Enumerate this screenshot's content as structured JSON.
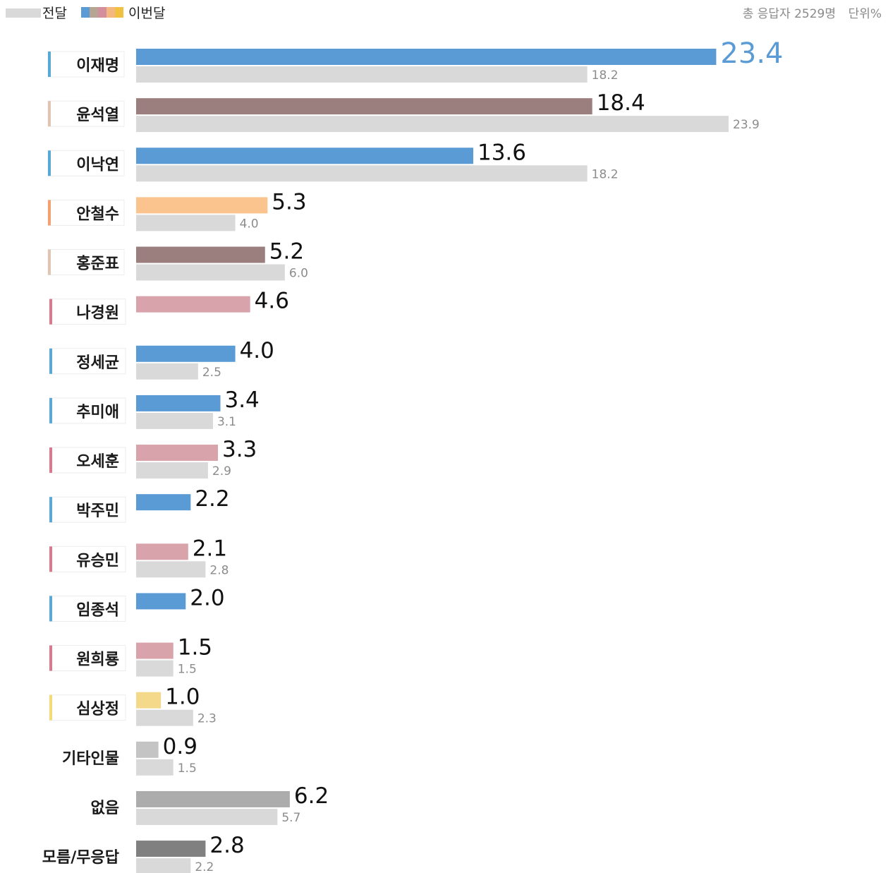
{
  "chart_data": {
    "type": "bar",
    "orientation": "horizontal",
    "legend": {
      "position": "top-left",
      "items": [
        {
          "name": "전달",
          "swatch_colors": [
            "#d9d9d9"
          ]
        },
        {
          "name": "이번달",
          "swatch_colors": [
            "#5b9bd5",
            "#b5a592",
            "#d48f9c",
            "#f2b880",
            "#f0c040"
          ]
        }
      ]
    },
    "meta_text": {
      "respondents": "총 응답자 2529명",
      "unit": "단위%"
    },
    "xlim": [
      0,
      23.9
    ],
    "grid": false,
    "series": [
      {
        "name": "이번달",
        "values": [
          23.4,
          18.4,
          13.6,
          5.3,
          5.2,
          4.6,
          4.0,
          3.4,
          3.3,
          2.2,
          2.1,
          2.0,
          1.5,
          1.0,
          0.9,
          6.2,
          2.8
        ]
      },
      {
        "name": "전달",
        "values": [
          18.2,
          23.9,
          18.2,
          4.0,
          6.0,
          null,
          2.5,
          3.1,
          2.9,
          null,
          2.8,
          null,
          1.5,
          2.3,
          1.5,
          5.7,
          2.2
        ]
      }
    ],
    "categories": [
      "이재명",
      "윤석열",
      "이낙연",
      "안철수",
      "홍준표",
      "나경원",
      "정세균",
      "추미애",
      "오세훈",
      "박주민",
      "유승민",
      "임종석",
      "원희룡",
      "심상정",
      "기타인물",
      "없음",
      "모름/무응답"
    ],
    "current_labels": [
      "23.4",
      "18.4",
      "13.6",
      "5.3",
      "5.2",
      "4.6",
      "4.0",
      "3.4",
      "3.3",
      "2.2",
      "2.1",
      "2.0",
      "1.5",
      "1.0",
      "0.9",
      "6.2",
      "2.8"
    ],
    "previous_labels": [
      "18.2",
      "23.9",
      "18.2",
      "4.0",
      "6.0",
      "",
      "2.5",
      "3.1",
      "2.9",
      "",
      "2.8",
      "",
      "1.5",
      "2.3",
      "1.5",
      "5.7",
      "2.2"
    ],
    "bar_colors": [
      "#5b9bd5",
      "#9b7e7e",
      "#5b9bd5",
      "#fbc48e",
      "#9b7e7e",
      "#d8a3ab",
      "#5b9bd5",
      "#5b9bd5",
      "#d8a3ab",
      "#5b9bd5",
      "#d8a3ab",
      "#5b9bd5",
      "#d8a3ab",
      "#f5d98a",
      "#c4c4c4",
      "#acacac",
      "#808080"
    ],
    "marker_colors": [
      "#5aa8d6",
      "#e0c4b4",
      "#5aa8d6",
      "#f4a070",
      "#e0c4b4",
      "#d67a8e",
      "#5aa8d6",
      "#5aa8d6",
      "#d67a8e",
      "#5aa8d6",
      "#d67a8e",
      "#5aa8d6",
      "#d67a8e",
      "#f2dc7a",
      "",
      "",
      ""
    ],
    "previous_color": "#d9d9d9",
    "highlight_color": "#5b9bd5"
  }
}
